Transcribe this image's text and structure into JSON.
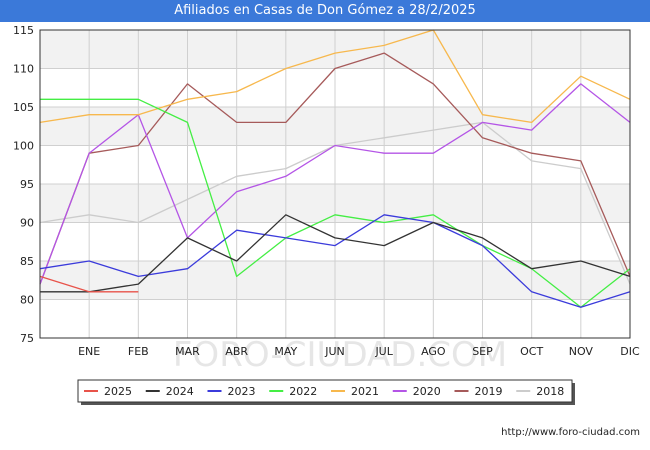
{
  "title": "Afiliados en Casas de Don Gómez a 28/2/2025",
  "footer_url": "http://www.foro-ciudad.com",
  "watermark": "FORO-CIUDAD.COM",
  "chart_data": {
    "type": "line",
    "title": "Afiliados en Casas de Don Gómez a 28/2/2025",
    "xlabel": "",
    "ylabel": "",
    "ylim": [
      75,
      115
    ],
    "yticks": [
      75,
      80,
      85,
      90,
      95,
      100,
      105,
      110,
      115
    ],
    "categories": [
      "",
      "ENE",
      "FEB",
      "MAR",
      "ABR",
      "MAY",
      "JUN",
      "JUL",
      "AGO",
      "SEP",
      "OCT",
      "NOV",
      "DIC"
    ],
    "grid": true,
    "legend_position": "bottom",
    "series": [
      {
        "name": "2025",
        "color": "#e8534a",
        "values": [
          83,
          81,
          81,
          null,
          null,
          null,
          null,
          null,
          null,
          null,
          null,
          null,
          null
        ]
      },
      {
        "name": "2024",
        "color": "#333333",
        "values": [
          81,
          81,
          82,
          88,
          85,
          91,
          88,
          87,
          90,
          88,
          84,
          85,
          83
        ]
      },
      {
        "name": "2023",
        "color": "#3b3bdb",
        "values": [
          84,
          85,
          83,
          84,
          89,
          88,
          87,
          91,
          90,
          87,
          81,
          79,
          81
        ]
      },
      {
        "name": "2022",
        "color": "#44ee44",
        "values": [
          106,
          106,
          106,
          103,
          83,
          88,
          91,
          90,
          91,
          87,
          84,
          79,
          84
        ]
      },
      {
        "name": "2021",
        "color": "#f7b84d",
        "values": [
          103,
          104,
          104,
          106,
          107,
          110,
          112,
          113,
          115,
          104,
          103,
          109,
          106
        ]
      },
      {
        "name": "2020",
        "color": "#b455e6",
        "values": [
          82,
          99,
          104,
          88,
          94,
          96,
          100,
          99,
          99,
          103,
          102,
          108,
          103
        ]
      },
      {
        "name": "2019",
        "color": "#a65a5a",
        "values": [
          82,
          99,
          100,
          108,
          103,
          103,
          110,
          112,
          108,
          101,
          99,
          98,
          83
        ]
      },
      {
        "name": "2018",
        "color": "#cccccc",
        "values": [
          90,
          91,
          90,
          93,
          96,
          97,
          100,
          101,
          102,
          103,
          98,
          97,
          82
        ]
      }
    ]
  }
}
